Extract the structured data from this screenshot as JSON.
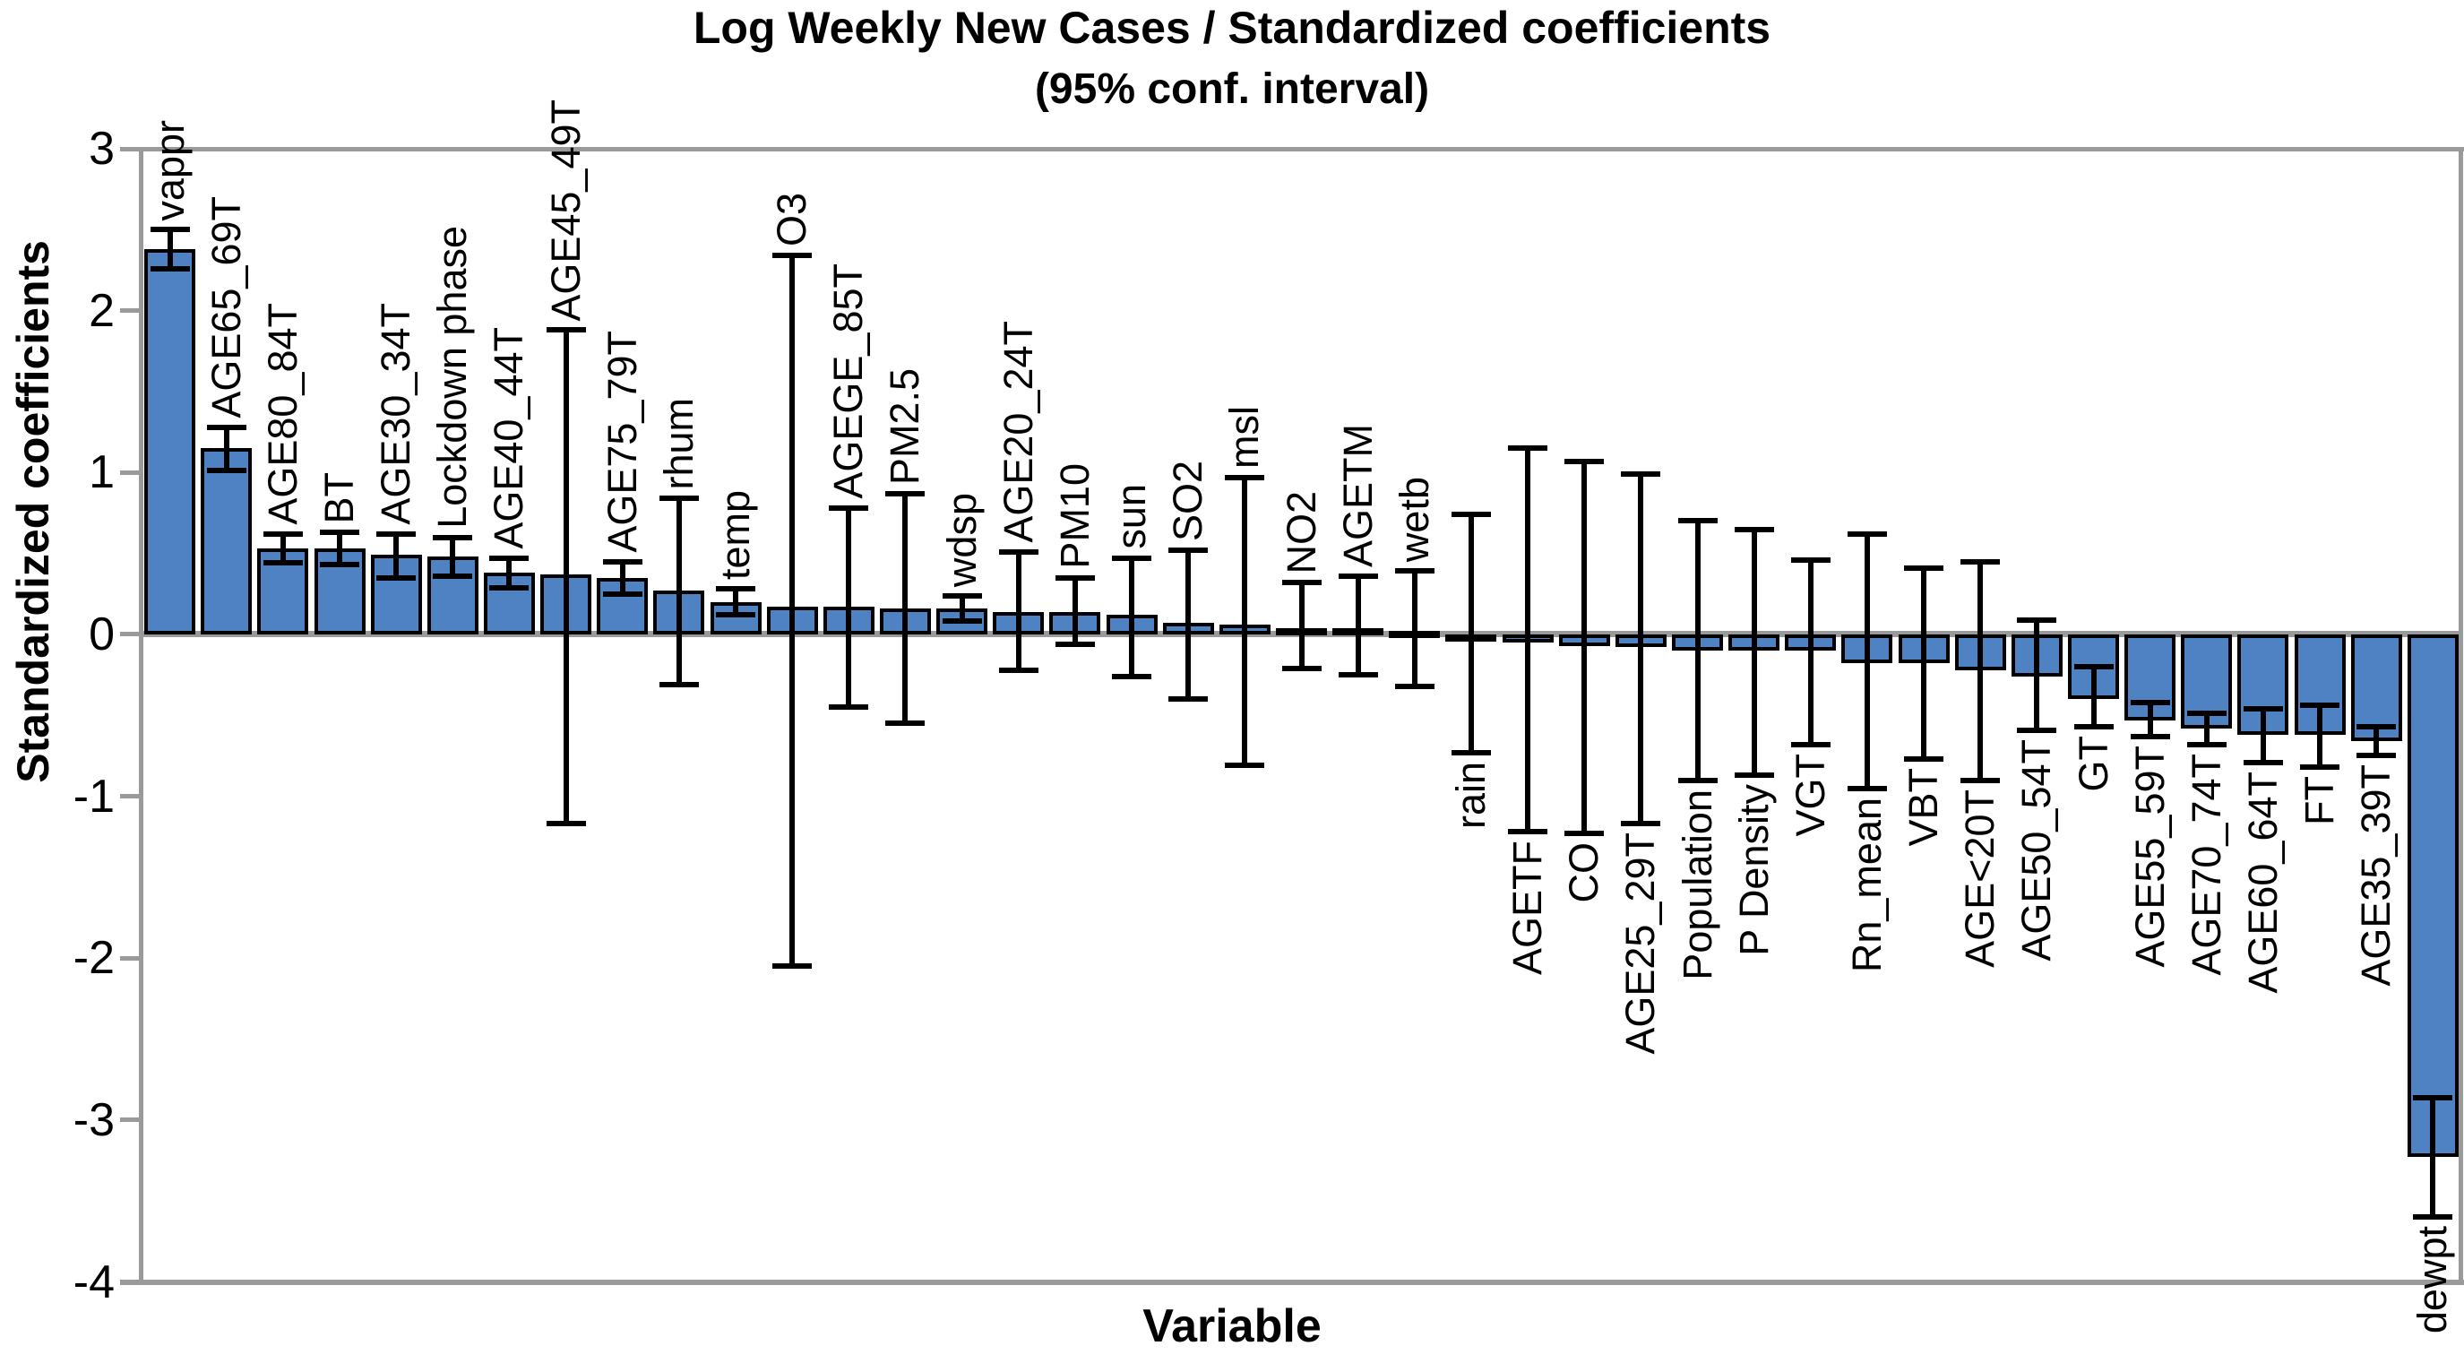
{
  "chart_data": {
    "type": "bar",
    "title": "Log Weekly New Cases / Standardized coefficients",
    "subtitle": "(95% conf. interval)",
    "xlabel": "Variable",
    "ylabel": "Standardized coefficients",
    "ylim": [
      -4,
      3
    ],
    "yticks": [
      "3",
      "2",
      "1",
      "0",
      "-1",
      "-2",
      "-3",
      "-4"
    ],
    "ytick_values": [
      3,
      2,
      1,
      0,
      -1,
      -2,
      -3,
      -4
    ],
    "grid": "frame only, zero baseline, no gridlines",
    "legend": "none",
    "bar_color": "#4f82c2",
    "bar_border_color": "#000000",
    "frame_color": "#9a9a9a",
    "error_bar_color": "#000000",
    "series_name": "Standardized coefficient (95% confidence interval)",
    "bars": [
      {
        "label": "vappr",
        "value": 2.38,
        "ci_low": 2.26,
        "ci_high": 2.5
      },
      {
        "label": "AGE65_69T",
        "value": 1.15,
        "ci_low": 1.01,
        "ci_high": 1.28
      },
      {
        "label": "AGE80_84T",
        "value": 0.53,
        "ci_low": 0.44,
        "ci_high": 0.62
      },
      {
        "label": "BT",
        "value": 0.53,
        "ci_low": 0.43,
        "ci_high": 0.63
      },
      {
        "label": "AGE30_34T",
        "value": 0.49,
        "ci_low": 0.35,
        "ci_high": 0.62
      },
      {
        "label": "Lockdown phase",
        "value": 0.48,
        "ci_low": 0.36,
        "ci_high": 0.6
      },
      {
        "label": "AGE40_44T",
        "value": 0.38,
        "ci_low": 0.29,
        "ci_high": 0.47
      },
      {
        "label": "AGE45_49T",
        "value": 0.37,
        "ci_low": -1.17,
        "ci_high": 1.88
      },
      {
        "label": "AGE75_79T",
        "value": 0.35,
        "ci_low": 0.25,
        "ci_high": 0.45
      },
      {
        "label": "rhum",
        "value": 0.27,
        "ci_low": -0.31,
        "ci_high": 0.84
      },
      {
        "label": "temp",
        "value": 0.2,
        "ci_low": 0.12,
        "ci_high": 0.28
      },
      {
        "label": "O3",
        "value": 0.17,
        "ci_low": -2.05,
        "ci_high": 2.34
      },
      {
        "label": "AGEGE_85T",
        "value": 0.17,
        "ci_low": -0.45,
        "ci_high": 0.78
      },
      {
        "label": "PM2.5",
        "value": 0.16,
        "ci_low": -0.55,
        "ci_high": 0.87
      },
      {
        "label": "wdsp",
        "value": 0.16,
        "ci_low": 0.08,
        "ci_high": 0.24
      },
      {
        "label": "AGE20_24T",
        "value": 0.14,
        "ci_low": -0.22,
        "ci_high": 0.51
      },
      {
        "label": "PM10",
        "value": 0.14,
        "ci_low": -0.06,
        "ci_high": 0.35
      },
      {
        "label": "sun",
        "value": 0.12,
        "ci_low": -0.26,
        "ci_high": 0.47
      },
      {
        "label": "SO2",
        "value": 0.07,
        "ci_low": -0.4,
        "ci_high": 0.52
      },
      {
        "label": "msl",
        "value": 0.06,
        "ci_low": -0.81,
        "ci_high": 0.97
      },
      {
        "label": "NO2",
        "value": 0.04,
        "ci_low": -0.21,
        "ci_high": 0.32
      },
      {
        "label": "AGETM",
        "value": 0.04,
        "ci_low": -0.25,
        "ci_high": 0.36
      },
      {
        "label": "wetb",
        "value": 0.02,
        "ci_low": -0.32,
        "ci_high": 0.39
      },
      {
        "label": "rain",
        "value": -0.01,
        "ci_low": -0.73,
        "ci_high": 0.74
      },
      {
        "label": "AGETF",
        "value": -0.05,
        "ci_low": -1.22,
        "ci_high": 1.15
      },
      {
        "label": "CO",
        "value": -0.07,
        "ci_low": -1.23,
        "ci_high": 1.07
      },
      {
        "label": "AGE25_29T",
        "value": -0.08,
        "ci_low": -1.17,
        "ci_high": 0.99
      },
      {
        "label": "Population",
        "value": -0.1,
        "ci_low": -0.9,
        "ci_high": 0.7
      },
      {
        "label": "P Density",
        "value": -0.1,
        "ci_low": -0.87,
        "ci_high": 0.65
      },
      {
        "label": "VGT",
        "value": -0.1,
        "ci_low": -0.68,
        "ci_high": 0.46
      },
      {
        "label": "Rn_mean",
        "value": -0.18,
        "ci_low": -0.95,
        "ci_high": 0.62
      },
      {
        "label": "VBT",
        "value": -0.18,
        "ci_low": -0.77,
        "ci_high": 0.41
      },
      {
        "label": "AGE<20T",
        "value": -0.22,
        "ci_low": -0.9,
        "ci_high": 0.45
      },
      {
        "label": "AGE50_54T",
        "value": -0.26,
        "ci_low": -0.59,
        "ci_high": 0.09
      },
      {
        "label": "GT",
        "value": -0.4,
        "ci_low": -0.57,
        "ci_high": -0.2
      },
      {
        "label": "AGE55_59T",
        "value": -0.53,
        "ci_low": -0.63,
        "ci_high": -0.42
      },
      {
        "label": "AGE70_74T",
        "value": -0.58,
        "ci_low": -0.68,
        "ci_high": -0.49
      },
      {
        "label": "AGE60_64T",
        "value": -0.62,
        "ci_low": -0.79,
        "ci_high": -0.46
      },
      {
        "label": "FT",
        "value": -0.62,
        "ci_low": -0.82,
        "ci_high": -0.44
      },
      {
        "label": "AGE35_39T",
        "value": -0.66,
        "ci_low": -0.75,
        "ci_high": -0.57
      },
      {
        "label": "dewpt",
        "value": -3.23,
        "ci_low": -3.6,
        "ci_high": -2.86
      }
    ]
  }
}
